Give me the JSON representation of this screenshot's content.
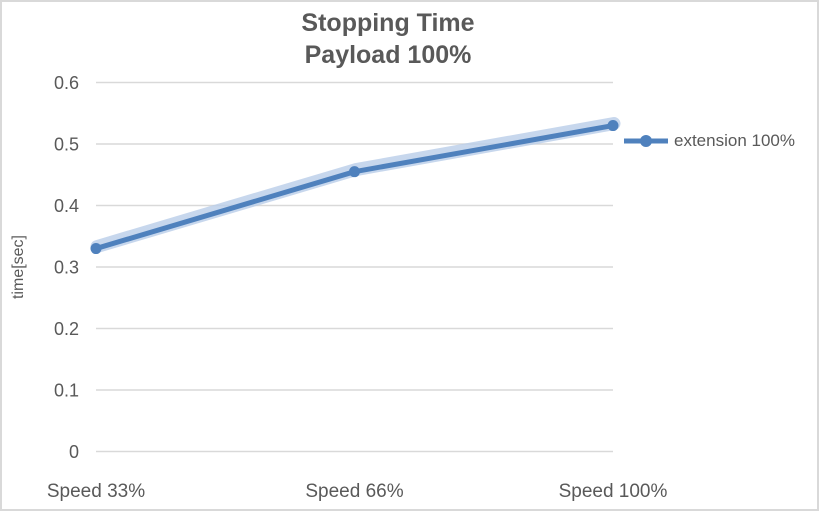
{
  "chart_data": {
    "type": "line",
    "title": "Stopping Time",
    "subtitle": "Payload 100%",
    "categories": [
      "Speed 33%",
      "Speed 66%",
      "Speed 100%"
    ],
    "series": [
      {
        "name": "extension 100%",
        "values": [
          0.33,
          0.455,
          0.53
        ]
      }
    ],
    "xlabel": "",
    "ylabel": "time[sec]",
    "ylim": [
      0,
      0.6
    ],
    "yticks": {
      "values": [
        0,
        0.1,
        0.2,
        0.3,
        0.4,
        0.5,
        0.6
      ],
      "labels": [
        "0",
        "0.1",
        "0.2",
        "0.3",
        "0.4",
        "0.5",
        "0.6"
      ]
    },
    "grid": "horizontal",
    "legend_position": "right"
  },
  "colors": {
    "series": "#4F81BD",
    "series_halo": "#B9CDE8",
    "grid": "#D9D9D9",
    "text": "#595959",
    "border": "#D9D9D9",
    "background": "#FFFFFF"
  }
}
